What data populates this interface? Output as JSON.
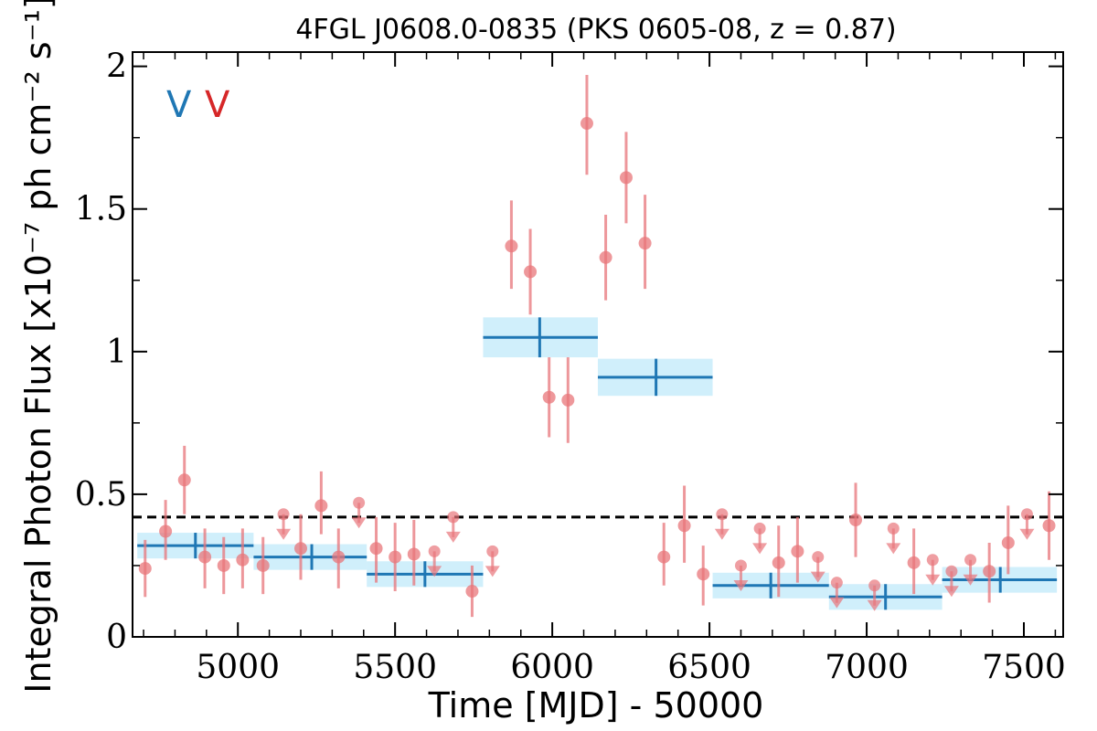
{
  "chart_data": {
    "type": "scatter",
    "title": "4FGL J0608.0-0835 (PKS 0605-08, z = 0.87)",
    "xlabel": "Time [MJD] - 50000",
    "ylabel": "Integral Photon Flux [x10⁻⁷ ph cm⁻² s⁻¹]",
    "xlim": [
      4665,
      7625
    ],
    "ylim": [
      0,
      2.05
    ],
    "x_ticks": [
      5000,
      5500,
      6000,
      6500,
      7000,
      7500
    ],
    "x_tick_labels": [
      "5000",
      "5500",
      "6000",
      "6500",
      "7000",
      "7500"
    ],
    "y_ticks": [
      0,
      0.5,
      1,
      1.5,
      2
    ],
    "y_tick_labels": [
      "0",
      "0.5",
      "1",
      "1.5",
      "2"
    ],
    "grid": false,
    "threshold_line": 0.42,
    "markers": [
      {
        "label": "V",
        "color": "#1f77b4"
      },
      {
        "label": "V",
        "color": "#d62728"
      }
    ],
    "points_color": "#e8757a",
    "bins_color": "#1f77b4",
    "bins_band_color": "#a9e2f7",
    "points": [
      {
        "x": 4705,
        "y": 0.24,
        "lo": 0.14,
        "hi": 0.34
      },
      {
        "x": 4770,
        "y": 0.37,
        "lo": 0.27,
        "hi": 0.48
      },
      {
        "x": 4830,
        "y": 0.55,
        "lo": 0.43,
        "hi": 0.67
      },
      {
        "x": 4895,
        "y": 0.28,
        "lo": 0.17,
        "hi": 0.38
      },
      {
        "x": 4955,
        "y": 0.25,
        "lo": 0.15,
        "hi": 0.35
      },
      {
        "x": 5015,
        "y": 0.27,
        "lo": 0.17,
        "hi": 0.38
      },
      {
        "x": 5080,
        "y": 0.25,
        "lo": 0.15,
        "hi": 0.35
      },
      {
        "x": 5200,
        "y": 0.31,
        "lo": 0.2,
        "hi": 0.43
      },
      {
        "x": 5265,
        "y": 0.46,
        "lo": 0.36,
        "hi": 0.58
      },
      {
        "x": 5320,
        "y": 0.28,
        "lo": 0.17,
        "hi": 0.38
      },
      {
        "x": 5440,
        "y": 0.31,
        "lo": 0.19,
        "hi": 0.42
      },
      {
        "x": 5500,
        "y": 0.28,
        "lo": 0.16,
        "hi": 0.4
      },
      {
        "x": 5560,
        "y": 0.29,
        "lo": 0.18,
        "hi": 0.41
      },
      {
        "x": 5745,
        "y": 0.16,
        "lo": 0.07,
        "hi": 0.25
      },
      {
        "x": 5870,
        "y": 1.37,
        "lo": 1.22,
        "hi": 1.53
      },
      {
        "x": 5930,
        "y": 1.28,
        "lo": 1.13,
        "hi": 1.43
      },
      {
        "x": 5990,
        "y": 0.84,
        "lo": 0.7,
        "hi": 0.98
      },
      {
        "x": 6050,
        "y": 0.83,
        "lo": 0.68,
        "hi": 0.98
      },
      {
        "x": 6110,
        "y": 1.8,
        "lo": 1.62,
        "hi": 1.97
      },
      {
        "x": 6170,
        "y": 1.33,
        "lo": 1.18,
        "hi": 1.48
      },
      {
        "x": 6235,
        "y": 1.61,
        "lo": 1.45,
        "hi": 1.77
      },
      {
        "x": 6295,
        "y": 1.38,
        "lo": 1.22,
        "hi": 1.55
      },
      {
        "x": 6355,
        "y": 0.28,
        "lo": 0.18,
        "hi": 0.4
      },
      {
        "x": 6420,
        "y": 0.39,
        "lo": 0.26,
        "hi": 0.53
      },
      {
        "x": 6480,
        "y": 0.22,
        "lo": 0.11,
        "hi": 0.32
      },
      {
        "x": 6720,
        "y": 0.26,
        "lo": 0.14,
        "hi": 0.39
      },
      {
        "x": 6780,
        "y": 0.3,
        "lo": 0.19,
        "hi": 0.42
      },
      {
        "x": 6965,
        "y": 0.41,
        "lo": 0.28,
        "hi": 0.54
      },
      {
        "x": 7150,
        "y": 0.26,
        "lo": 0.15,
        "hi": 0.38
      },
      {
        "x": 7390,
        "y": 0.23,
        "lo": 0.12,
        "hi": 0.33
      },
      {
        "x": 7450,
        "y": 0.33,
        "lo": 0.22,
        "hi": 0.46
      },
      {
        "x": 7580,
        "y": 0.39,
        "lo": 0.27,
        "hi": 0.51
      }
    ],
    "upper_limits": [
      {
        "x": 5145,
        "y": 0.43
      },
      {
        "x": 5385,
        "y": 0.47
      },
      {
        "x": 5625,
        "y": 0.3
      },
      {
        "x": 5685,
        "y": 0.42
      },
      {
        "x": 5810,
        "y": 0.3
      },
      {
        "x": 6540,
        "y": 0.43
      },
      {
        "x": 6600,
        "y": 0.25
      },
      {
        "x": 6660,
        "y": 0.38
      },
      {
        "x": 6845,
        "y": 0.28
      },
      {
        "x": 6905,
        "y": 0.19
      },
      {
        "x": 7025,
        "y": 0.18
      },
      {
        "x": 7085,
        "y": 0.38
      },
      {
        "x": 7210,
        "y": 0.27
      },
      {
        "x": 7270,
        "y": 0.23
      },
      {
        "x": 7330,
        "y": 0.27
      },
      {
        "x": 7510,
        "y": 0.43
      }
    ],
    "bins": [
      {
        "x0": 4680,
        "x1": 5050,
        "xc": 4865,
        "y": 0.32,
        "err": 0.045
      },
      {
        "x0": 5050,
        "x1": 5410,
        "xc": 5235,
        "y": 0.28,
        "err": 0.045
      },
      {
        "x0": 5410,
        "x1": 5780,
        "xc": 5595,
        "y": 0.22,
        "err": 0.045
      },
      {
        "x0": 5780,
        "x1": 6145,
        "xc": 5960,
        "y": 1.05,
        "err": 0.07
      },
      {
        "x0": 6145,
        "x1": 6510,
        "xc": 6330,
        "y": 0.91,
        "err": 0.065
      },
      {
        "x0": 6510,
        "x1": 6880,
        "xc": 6695,
        "y": 0.18,
        "err": 0.045
      },
      {
        "x0": 6880,
        "x1": 7240,
        "xc": 7060,
        "y": 0.14,
        "err": 0.045
      },
      {
        "x0": 7240,
        "x1": 7605,
        "xc": 7425,
        "y": 0.2,
        "err": 0.045
      }
    ]
  }
}
